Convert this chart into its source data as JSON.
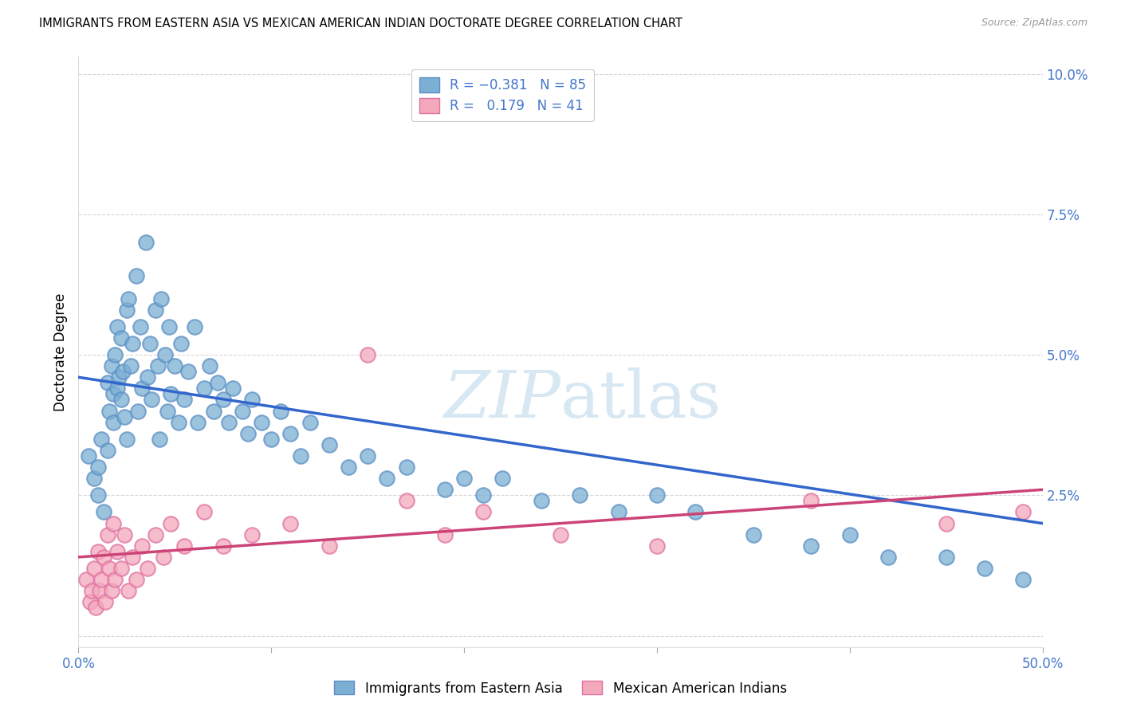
{
  "title": "IMMIGRANTS FROM EASTERN ASIA VS MEXICAN AMERICAN INDIAN DOCTORATE DEGREE CORRELATION CHART",
  "source": "Source: ZipAtlas.com",
  "ylabel": "Doctorate Degree",
  "xlim": [
    0.0,
    0.5
  ],
  "ylim": [
    -0.002,
    0.103
  ],
  "blue_color": "#7BAFD4",
  "blue_edge_color": "#5B8FC4",
  "pink_color": "#F4A8BC",
  "pink_edge_color": "#E070A0",
  "blue_line_color": "#3366CC",
  "pink_line_color": "#CC4477",
  "watermark_color": "#D8E8F3",
  "grid_color": "#CCCCCC",
  "background_color": "#FFFFFF",
  "tick_color": "#4477CC",
  "blue_trend_x0": 0.0,
  "blue_trend_x1": 0.5,
  "blue_trend_y0": 0.046,
  "blue_trend_y1": 0.02,
  "pink_trend_x0": 0.0,
  "pink_trend_x1": 0.5,
  "pink_trend_y0": 0.014,
  "pink_trend_y1": 0.026,
  "blue_x": [
    0.005,
    0.008,
    0.01,
    0.01,
    0.012,
    0.013,
    0.015,
    0.015,
    0.016,
    0.017,
    0.018,
    0.018,
    0.019,
    0.02,
    0.02,
    0.021,
    0.022,
    0.022,
    0.023,
    0.024,
    0.025,
    0.025,
    0.026,
    0.027,
    0.028,
    0.03,
    0.031,
    0.032,
    0.033,
    0.035,
    0.036,
    0.037,
    0.038,
    0.04,
    0.041,
    0.042,
    0.043,
    0.045,
    0.046,
    0.047,
    0.048,
    0.05,
    0.052,
    0.053,
    0.055,
    0.057,
    0.06,
    0.062,
    0.065,
    0.068,
    0.07,
    0.072,
    0.075,
    0.078,
    0.08,
    0.085,
    0.088,
    0.09,
    0.095,
    0.1,
    0.105,
    0.11,
    0.115,
    0.12,
    0.13,
    0.14,
    0.15,
    0.16,
    0.17,
    0.19,
    0.2,
    0.21,
    0.22,
    0.24,
    0.26,
    0.28,
    0.3,
    0.32,
    0.35,
    0.38,
    0.4,
    0.42,
    0.45,
    0.47,
    0.49
  ],
  "blue_y": [
    0.032,
    0.028,
    0.03,
    0.025,
    0.035,
    0.022,
    0.045,
    0.033,
    0.04,
    0.048,
    0.043,
    0.038,
    0.05,
    0.044,
    0.055,
    0.046,
    0.042,
    0.053,
    0.047,
    0.039,
    0.058,
    0.035,
    0.06,
    0.048,
    0.052,
    0.064,
    0.04,
    0.055,
    0.044,
    0.07,
    0.046,
    0.052,
    0.042,
    0.058,
    0.048,
    0.035,
    0.06,
    0.05,
    0.04,
    0.055,
    0.043,
    0.048,
    0.038,
    0.052,
    0.042,
    0.047,
    0.055,
    0.038,
    0.044,
    0.048,
    0.04,
    0.045,
    0.042,
    0.038,
    0.044,
    0.04,
    0.036,
    0.042,
    0.038,
    0.035,
    0.04,
    0.036,
    0.032,
    0.038,
    0.034,
    0.03,
    0.032,
    0.028,
    0.03,
    0.026,
    0.028,
    0.025,
    0.028,
    0.024,
    0.025,
    0.022,
    0.025,
    0.022,
    0.018,
    0.016,
    0.018,
    0.014,
    0.014,
    0.012,
    0.01
  ],
  "pink_x": [
    0.004,
    0.006,
    0.007,
    0.008,
    0.009,
    0.01,
    0.011,
    0.012,
    0.013,
    0.014,
    0.015,
    0.016,
    0.017,
    0.018,
    0.019,
    0.02,
    0.022,
    0.024,
    0.026,
    0.028,
    0.03,
    0.033,
    0.036,
    0.04,
    0.044,
    0.048,
    0.055,
    0.065,
    0.075,
    0.09,
    0.11,
    0.13,
    0.15,
    0.17,
    0.19,
    0.21,
    0.25,
    0.3,
    0.38,
    0.45,
    0.49
  ],
  "pink_y": [
    0.01,
    0.006,
    0.008,
    0.012,
    0.005,
    0.015,
    0.008,
    0.01,
    0.014,
    0.006,
    0.018,
    0.012,
    0.008,
    0.02,
    0.01,
    0.015,
    0.012,
    0.018,
    0.008,
    0.014,
    0.01,
    0.016,
    0.012,
    0.018,
    0.014,
    0.02,
    0.016,
    0.022,
    0.016,
    0.018,
    0.02,
    0.016,
    0.05,
    0.024,
    0.018,
    0.022,
    0.018,
    0.016,
    0.024,
    0.02,
    0.022
  ]
}
